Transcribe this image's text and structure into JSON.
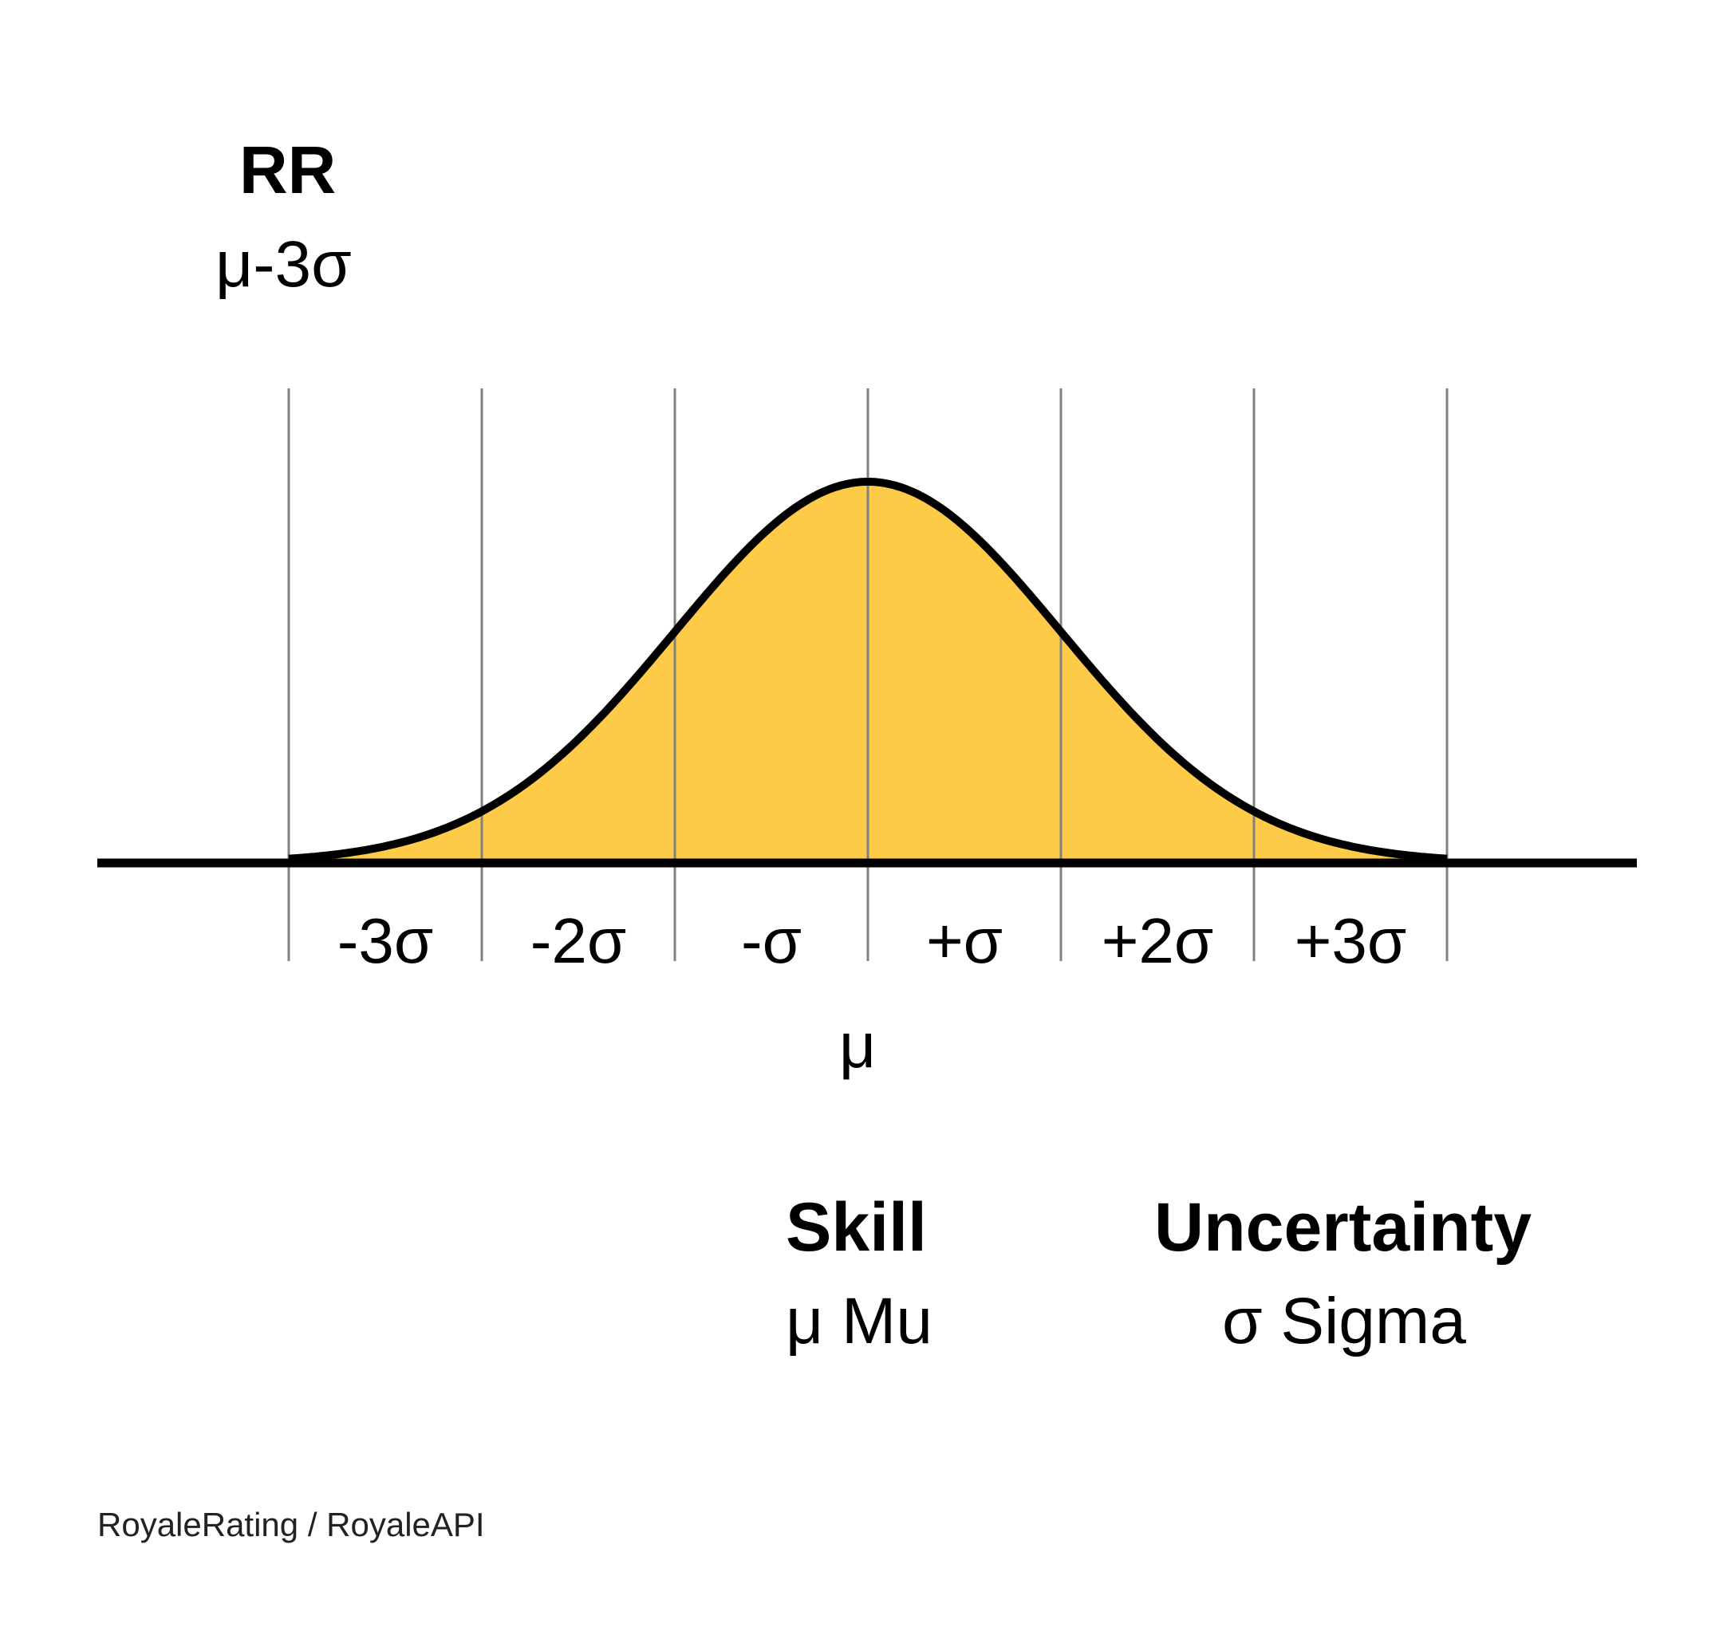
{
  "rr": {
    "title": "RR",
    "formula": "μ-3σ"
  },
  "axis": {
    "sigma_labels": [
      "-3σ",
      "-2σ",
      "-σ",
      "+σ",
      "+2σ",
      "+3σ"
    ],
    "mean_label": "μ"
  },
  "legend": {
    "skill": {
      "title": "Skill",
      "subtitle": "μ Mu"
    },
    "uncertainty": {
      "title": "Uncertainty",
      "subtitle": "σ Sigma"
    }
  },
  "credit": "RoyaleRating / RoyaleAPI",
  "colors": {
    "fill": "#FDCB47",
    "curve": "#000000",
    "gridline": "#808080",
    "background": "#FFFFFF"
  }
}
